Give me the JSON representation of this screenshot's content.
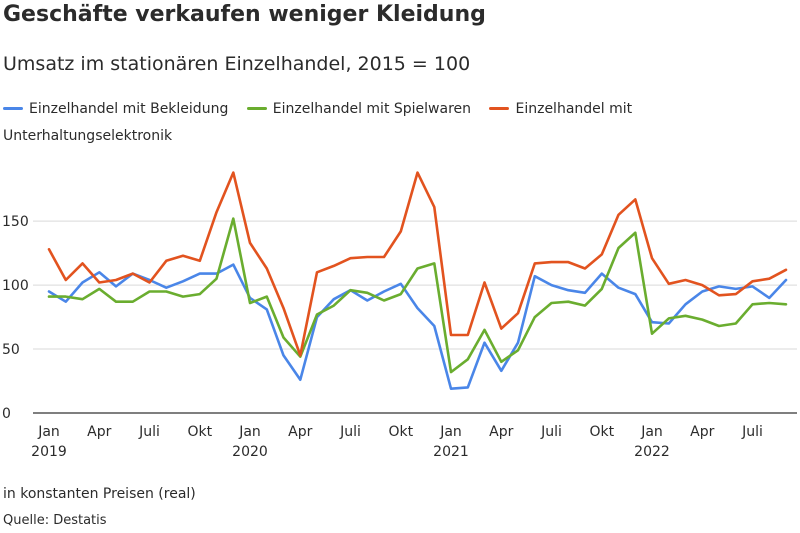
{
  "chart_data": {
    "type": "line",
    "title": "Geschäfte verkaufen weniger Kleidung",
    "subtitle": "Umsatz im stationären Einzelhandel, 2015 = 100",
    "ylim": [
      0,
      190
    ],
    "yticks": [
      0,
      50,
      100,
      150
    ],
    "grid": true,
    "legend_position": "top",
    "x": [
      "2019-01",
      "2019-02",
      "2019-03",
      "2019-04",
      "2019-05",
      "2019-06",
      "2019-07",
      "2019-08",
      "2019-09",
      "2019-10",
      "2019-11",
      "2019-12",
      "2020-01",
      "2020-02",
      "2020-03",
      "2020-04",
      "2020-05",
      "2020-06",
      "2020-07",
      "2020-08",
      "2020-09",
      "2020-10",
      "2020-11",
      "2020-12",
      "2021-01",
      "2021-02",
      "2021-03",
      "2021-04",
      "2021-05",
      "2021-06",
      "2021-07",
      "2021-08",
      "2021-09",
      "2021-10",
      "2021-11",
      "2021-12",
      "2022-01",
      "2022-02",
      "2022-03",
      "2022-04",
      "2022-05",
      "2022-06",
      "2022-07",
      "2022-08",
      "2022-09"
    ],
    "xtick_labels": [
      {
        "month": 0,
        "label": "Jan",
        "year": "2019"
      },
      {
        "month": 3,
        "label": "Apr",
        "year": ""
      },
      {
        "month": 6,
        "label": "Juli",
        "year": ""
      },
      {
        "month": 9,
        "label": "Okt",
        "year": ""
      },
      {
        "month": 12,
        "label": "Jan",
        "year": "2020"
      },
      {
        "month": 15,
        "label": "Apr",
        "year": ""
      },
      {
        "month": 18,
        "label": "Juli",
        "year": ""
      },
      {
        "month": 21,
        "label": "Okt",
        "year": ""
      },
      {
        "month": 24,
        "label": "Jan",
        "year": "2021"
      },
      {
        "month": 27,
        "label": "Apr",
        "year": ""
      },
      {
        "month": 30,
        "label": "Juli",
        "year": ""
      },
      {
        "month": 33,
        "label": "Okt",
        "year": ""
      },
      {
        "month": 36,
        "label": "Jan",
        "year": "2022"
      },
      {
        "month": 39,
        "label": "Apr",
        "year": ""
      },
      {
        "month": 42,
        "label": "Juli",
        "year": ""
      }
    ],
    "series": [
      {
        "name": "Einzelhandel mit Bekleidung",
        "color": "#4a86e8",
        "values": [
          95,
          87,
          102,
          110,
          99,
          109,
          104,
          98,
          103,
          109,
          109,
          116,
          90,
          81,
          45,
          26,
          75,
          89,
          96,
          88,
          95,
          101,
          82,
          68,
          19,
          20,
          55,
          33,
          55,
          107,
          100,
          96,
          94,
          109,
          98,
          93,
          71,
          70,
          85,
          95,
          99,
          97,
          99,
          90,
          104
        ]
      },
      {
        "name": "Einzelhandel mit Spielwaren",
        "color": "#6aad2f",
        "values": [
          91,
          91,
          89,
          97,
          87,
          87,
          95,
          95,
          91,
          93,
          105,
          152,
          86,
          91,
          59,
          44,
          77,
          84,
          96,
          94,
          88,
          93,
          113,
          117,
          32,
          42,
          65,
          40,
          49,
          75,
          86,
          87,
          84,
          97,
          129,
          141,
          62,
          74,
          76,
          73,
          68,
          70,
          85,
          86,
          85
        ]
      },
      {
        "name": "Einzelhandel mit Unterhaltungselektronik",
        "color": "#e2531f",
        "values": [
          128,
          104,
          117,
          102,
          104,
          109,
          102,
          119,
          123,
          119,
          157,
          188,
          133,
          113,
          82,
          45,
          110,
          115,
          121,
          122,
          122,
          142,
          188,
          161,
          61,
          61,
          102,
          66,
          78,
          117,
          118,
          118,
          113,
          124,
          155,
          167,
          121,
          101,
          104,
          100,
          92,
          93,
          103,
          105,
          112
        ]
      }
    ],
    "note": "in konstanten Preisen (real)",
    "source": "Quelle: Destatis"
  }
}
